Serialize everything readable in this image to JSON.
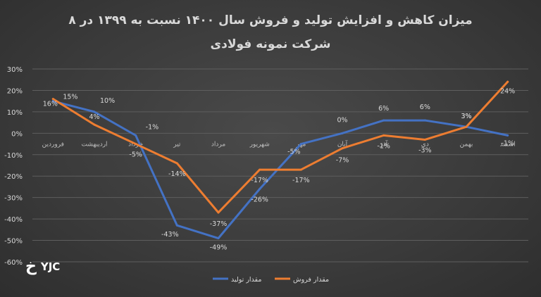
{
  "chart_data": {
    "type": "line",
    "title_line1": "میزان کاهش و افزایش تولید و فروش سال ۱۴۰۰ نسبت به ۱۳۹۹ در ۸",
    "title_line2": "شرکت نمونه فولادی",
    "categories": [
      "فروردین",
      "اردیبهشت",
      "خرداد",
      "تیر",
      "مرداد",
      "شهریور",
      "مهر",
      "آبان",
      "آذر",
      "دی",
      "بهمن",
      "اسفند"
    ],
    "ylim": [
      -60,
      30
    ],
    "yticks": [
      "30%",
      "20%",
      "10%",
      "0%",
      "-10%",
      "-20%",
      "-30%",
      "-40%",
      "-50%",
      "-60%"
    ],
    "grid": true,
    "legend_position": "bottom",
    "series": [
      {
        "name": "مقدار تولید",
        "color": "#4472c4",
        "values": [
          15,
          10,
          -1,
          -43,
          -49,
          -26,
          -5,
          0,
          6,
          6,
          3,
          -1
        ],
        "labels": [
          "15%",
          "10%",
          "-1%",
          "-43%",
          "-49%",
          "-26%",
          "-5%",
          "0%",
          "6%",
          "6%",
          "3%",
          "-1%"
        ]
      },
      {
        "name": "مقدار فروش",
        "color": "#ed7d31",
        "values": [
          16,
          4,
          -5,
          -14,
          -37,
          -17,
          -17,
          -7,
          -1,
          -3,
          3,
          24
        ],
        "labels": [
          "16%",
          "4%",
          "-5%",
          "-14%",
          "-37%",
          "-17%",
          "-17%",
          "-7%",
          "-1%",
          "-3%",
          "3%",
          "24%"
        ]
      }
    ]
  },
  "logo": {
    "text": "YJC",
    "mark": "خ"
  }
}
